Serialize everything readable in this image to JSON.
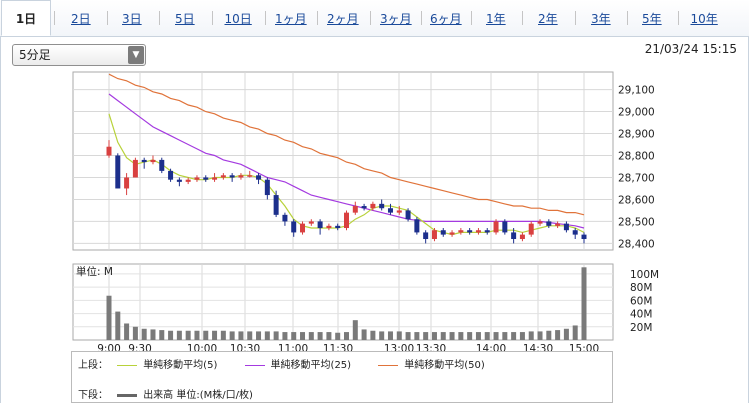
{
  "tabs": [
    "1日",
    "2日",
    "3日",
    "5日",
    "10日",
    "1ヶ月",
    "2ヶ月",
    "3ヶ月",
    "6ヶ月",
    "1年",
    "2年",
    "3年",
    "5年",
    "10年"
  ],
  "active_tab": "1日",
  "interval_select": "5分足",
  "timestamp": "21/03/24 15:15",
  "colors": {
    "up": "#d94040",
    "down": "#1c2f8c",
    "ma5": "#b8d23a",
    "ma25": "#a43ae0",
    "ma50": "#e0733a",
    "volume": "#7a7a7a"
  },
  "legend": {
    "upper_label": "上段：",
    "lower_label": "下段：",
    "ma": [
      {
        "name": "単純移動平均(5)",
        "color": "#b8d23a"
      },
      {
        "name": "単純移動平均(25)",
        "color": "#a43ae0"
      },
      {
        "name": "単純移動平均(50)",
        "color": "#e0733a"
      }
    ],
    "volume": "出来高 単位:(M株/口/枚)"
  },
  "chart_data": [
    {
      "type": "candlestick",
      "title": "",
      "x_ticks": [
        "9:00",
        "9:30",
        "10:00",
        "10:30",
        "11:00",
        "11:30",
        "13:00",
        "13:30",
        "14:00",
        "14:30",
        "15:00"
      ],
      "y_ticks": [
        "28,400",
        "28,500",
        "28,600",
        "28,700",
        "28,800",
        "28,900",
        "29,000",
        "29,100"
      ],
      "ylim": [
        28370,
        29180
      ],
      "grid": true,
      "candles": [
        [
          28800,
          28840,
          28790,
          28870
        ],
        [
          28800,
          28650,
          28650,
          28810
        ],
        [
          28650,
          28700,
          28620,
          28720
        ],
        [
          28700,
          28780,
          28700,
          28790
        ],
        [
          28780,
          28770,
          28740,
          28790
        ],
        [
          28770,
          28780,
          28760,
          28800
        ],
        [
          28780,
          28730,
          28720,
          28790
        ],
        [
          28730,
          28690,
          28680,
          28740
        ],
        [
          28690,
          28680,
          28660,
          28700
        ],
        [
          28680,
          28690,
          28670,
          28700
        ],
        [
          28690,
          28700,
          28680,
          28710
        ],
        [
          28700,
          28690,
          28680,
          28710
        ],
        [
          28690,
          28700,
          28680,
          28720
        ],
        [
          28700,
          28710,
          28690,
          28720
        ],
        [
          28710,
          28700,
          28680,
          28720
        ],
        [
          28700,
          28710,
          28690,
          28720
        ],
        [
          28710,
          28710,
          28700,
          28730
        ],
        [
          28710,
          28690,
          28670,
          28720
        ],
        [
          28690,
          28620,
          28600,
          28700
        ],
        [
          28620,
          28530,
          28520,
          28640
        ],
        [
          28530,
          28500,
          28480,
          28540
        ],
        [
          28500,
          28450,
          28430,
          28510
        ],
        [
          28450,
          28490,
          28440,
          28500
        ],
        [
          28490,
          28500,
          28480,
          28510
        ],
        [
          28500,
          28470,
          28440,
          28510
        ],
        [
          28470,
          28480,
          28460,
          28490
        ],
        [
          28480,
          28470,
          28460,
          28490
        ],
        [
          28470,
          28540,
          28460,
          28550
        ],
        [
          28540,
          28570,
          28530,
          28590
        ],
        [
          28570,
          28560,
          28550,
          28580
        ],
        [
          28560,
          28580,
          28550,
          28590
        ],
        [
          28580,
          28560,
          28550,
          28600
        ],
        [
          28560,
          28540,
          28530,
          28580
        ],
        [
          28540,
          28550,
          28530,
          28570
        ],
        [
          28550,
          28510,
          28500,
          28560
        ],
        [
          28510,
          28450,
          28440,
          28520
        ],
        [
          28450,
          28420,
          28400,
          28460
        ],
        [
          28420,
          28460,
          28410,
          28470
        ],
        [
          28460,
          28440,
          28430,
          28470
        ],
        [
          28440,
          28450,
          28430,
          28460
        ],
        [
          28450,
          28460,
          28440,
          28470
        ],
        [
          28460,
          28450,
          28440,
          28470
        ],
        [
          28450,
          28460,
          28440,
          28470
        ],
        [
          28460,
          28450,
          28440,
          28470
        ],
        [
          28450,
          28500,
          28440,
          28510
        ],
        [
          28500,
          28450,
          28440,
          28510
        ],
        [
          28450,
          28420,
          28400,
          28470
        ],
        [
          28420,
          28440,
          28410,
          28450
        ],
        [
          28440,
          28490,
          28430,
          28500
        ],
        [
          28490,
          28500,
          28480,
          28510
        ],
        [
          28500,
          28480,
          28470,
          28510
        ],
        [
          28480,
          28490,
          28470,
          28500
        ],
        [
          28490,
          28460,
          28450,
          28500
        ],
        [
          28460,
          28440,
          28420,
          28470
        ],
        [
          28440,
          28420,
          28400,
          28450
        ]
      ],
      "ma5": [
        28990,
        28860,
        28790,
        28760,
        28770,
        28780,
        28760,
        28730,
        28710,
        28700,
        28690,
        28690,
        28700,
        28700,
        28700,
        28710,
        28710,
        28700,
        28670,
        28620,
        28570,
        28510,
        28480,
        28470,
        28470,
        28470,
        28470,
        28480,
        28510,
        28530,
        28560,
        28570,
        28570,
        28560,
        28550,
        28520,
        28490,
        28460,
        28450,
        28440,
        28450,
        28450,
        28450,
        28450,
        28460,
        28460,
        28460,
        28450,
        28460,
        28470,
        28480,
        28480,
        28480,
        28470,
        28450
      ],
      "ma25": [
        29080,
        29050,
        29020,
        28990,
        28960,
        28930,
        28910,
        28890,
        28870,
        28850,
        28830,
        28810,
        28800,
        28780,
        28770,
        28760,
        28740,
        28720,
        28700,
        28690,
        28680,
        28660,
        28640,
        28620,
        28610,
        28600,
        28590,
        28580,
        28570,
        28560,
        28550,
        28540,
        28530,
        28520,
        28510,
        28505,
        28500,
        28500,
        28500,
        28500,
        28500,
        28500,
        28500,
        28500,
        28500,
        28500,
        28500,
        28500,
        28500,
        28500,
        28495,
        28490,
        28485,
        28480,
        28470
      ],
      "ma50": [
        29170,
        29150,
        29140,
        29120,
        29110,
        29090,
        29080,
        29060,
        29050,
        29030,
        29020,
        29000,
        28990,
        28970,
        28960,
        28950,
        28930,
        28920,
        28900,
        28890,
        28870,
        28860,
        28840,
        28830,
        28810,
        28800,
        28790,
        28770,
        28760,
        28740,
        28730,
        28720,
        28700,
        28690,
        28680,
        28670,
        28660,
        28650,
        28640,
        28630,
        28620,
        28610,
        28600,
        28600,
        28590,
        28580,
        28570,
        28570,
        28560,
        28560,
        28550,
        28550,
        28540,
        28540,
        28530
      ]
    },
    {
      "type": "bar",
      "title": "",
      "unit_label": "単位: M",
      "y_ticks": [
        "20M",
        "40M",
        "60M",
        "80M",
        "100M"
      ],
      "ylim": [
        0,
        115
      ],
      "values": [
        67,
        43,
        25,
        20,
        17,
        16,
        15,
        14,
        14,
        14,
        14,
        14,
        14,
        14,
        13,
        13,
        13,
        13,
        13,
        13,
        12,
        12,
        12,
        12,
        12,
        12,
        11,
        12,
        30,
        16,
        14,
        13,
        13,
        13,
        12,
        12,
        12,
        12,
        12,
        12,
        12,
        12,
        12,
        12,
        12,
        12,
        12,
        12,
        13,
        13,
        14,
        15,
        17,
        22,
        110
      ]
    }
  ]
}
